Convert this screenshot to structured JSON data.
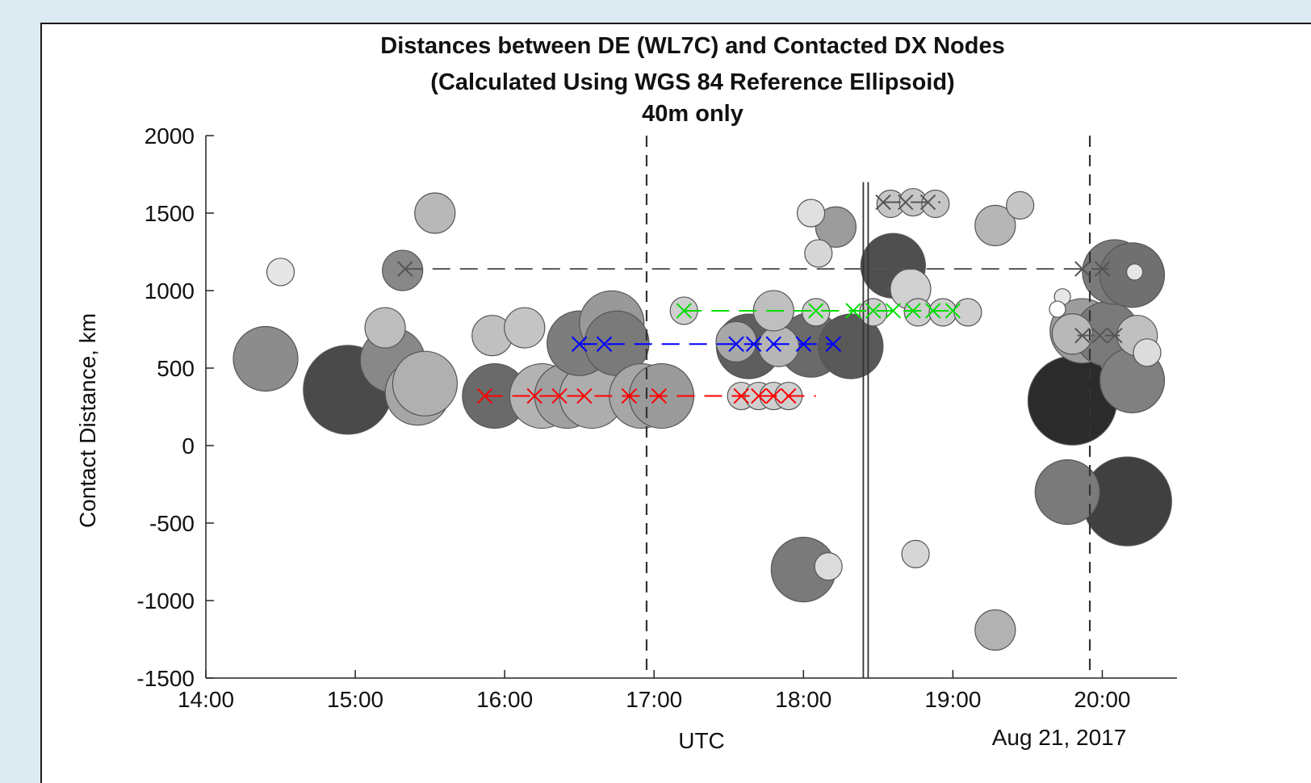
{
  "chart_data": {
    "type": "scatter",
    "title": [
      "Distances between DE (WL7C) and Contacted DX Nodes",
      "(Calculated Using WGS 84 Reference Ellipsoid)",
      "40m only"
    ],
    "xlabel": "UTC",
    "ylabel": "Contact Distance, km",
    "date_label": "Aug 21, 2017",
    "x_ticks": [
      "14:00",
      "15:00",
      "16:00",
      "17:00",
      "18:00",
      "19:00",
      "20:00"
    ],
    "y_ticks": [
      2000,
      1500,
      1000,
      500,
      0,
      -500,
      -1000,
      -1500
    ],
    "xlim": [
      "14:00",
      "20:30"
    ],
    "ylim": [
      -1500,
      2000
    ],
    "vertical_markers": {
      "dashed": [
        "16:57",
        "19:55"
      ],
      "solid_double": "18:25"
    },
    "bubbles": [
      {
        "x": "14:30",
        "y": 1120,
        "r": "small",
        "shade": "#e6e6e6"
      },
      {
        "x": "14:24",
        "y": 560,
        "r": "large",
        "shade": "#8c8c8c"
      },
      {
        "x": "14:57",
        "y": 360,
        "r": "xlarge",
        "shade": "#4a4a4a"
      },
      {
        "x": "15:12",
        "y": 760,
        "r": "medium",
        "shade": "#bdbdbd"
      },
      {
        "x": "15:15",
        "y": 550,
        "r": "large",
        "shade": "#888888"
      },
      {
        "x": "15:25",
        "y": 340,
        "r": "large",
        "shade": "#a6a6a6"
      },
      {
        "x": "15:28",
        "y": 400,
        "r": "large",
        "shade": "#b0b0b0"
      },
      {
        "x": "15:32",
        "y": 1500,
        "r": "medium",
        "shade": "#b8b8b8"
      },
      {
        "x": "15:19",
        "y": 1130,
        "r": "medium",
        "shade": "#888888"
      },
      {
        "x": "15:56",
        "y": 320,
        "r": "large",
        "shade": "#6a6a6a"
      },
      {
        "x": "15:55",
        "y": 710,
        "r": "medium",
        "shade": "#c0c0c0"
      },
      {
        "x": "16:08",
        "y": 760,
        "r": "medium",
        "shade": "#c4c4c4"
      },
      {
        "x": "16:15",
        "y": 320,
        "r": "large",
        "shade": "#b3b3b3"
      },
      {
        "x": "16:25",
        "y": 320,
        "r": "large",
        "shade": "#a0a0a0"
      },
      {
        "x": "16:35",
        "y": 320,
        "r": "large",
        "shade": "#adadad"
      },
      {
        "x": "16:30",
        "y": 660,
        "r": "large",
        "shade": "#7d7d7d"
      },
      {
        "x": "16:43",
        "y": 790,
        "r": "large",
        "shade": "#999999"
      },
      {
        "x": "16:45",
        "y": 660,
        "r": "large",
        "shade": "#7a7a7a"
      },
      {
        "x": "16:55",
        "y": 320,
        "r": "large",
        "shade": "#a6a6a6"
      },
      {
        "x": "17:03",
        "y": 320,
        "r": "large",
        "shade": "#9a9a9a"
      },
      {
        "x": "17:12",
        "y": 870,
        "r": "small",
        "shade": "#cfcfcf"
      },
      {
        "x": "17:33",
        "y": 670,
        "r": "medium",
        "shade": "#a8a8a8"
      },
      {
        "x": "17:35",
        "y": 320,
        "r": "small",
        "shade": "#cfcfcf"
      },
      {
        "x": "17:42",
        "y": 320,
        "r": "small",
        "shade": "#cfcfcf"
      },
      {
        "x": "17:48",
        "y": 320,
        "r": "small",
        "shade": "#cfcfcf"
      },
      {
        "x": "17:54",
        "y": 320,
        "r": "small",
        "shade": "#cfcfcf"
      },
      {
        "x": "17:38",
        "y": 640,
        "r": "large",
        "shade": "#5e5e5e"
      },
      {
        "x": "17:50",
        "y": 640,
        "r": "medium",
        "shade": "#b6b6b6"
      },
      {
        "x": "17:48",
        "y": 870,
        "r": "medium",
        "shade": "#bfbfbf"
      },
      {
        "x": "18:00",
        "y": -800,
        "r": "large",
        "shade": "#7a7a7a"
      },
      {
        "x": "18:10",
        "y": -780,
        "r": "small",
        "shade": "#dcdcdc"
      },
      {
        "x": "18:03",
        "y": 650,
        "r": "large",
        "shade": "#6a6a6a"
      },
      {
        "x": "18:05",
        "y": 860,
        "r": "small",
        "shade": "#cfcfcf"
      },
      {
        "x": "18:03",
        "y": 1500,
        "r": "small",
        "shade": "#e0e0e0"
      },
      {
        "x": "18:06",
        "y": 1240,
        "r": "small",
        "shade": "#d6d6d6"
      },
      {
        "x": "18:13",
        "y": 1410,
        "r": "medium",
        "shade": "#9c9c9c"
      },
      {
        "x": "18:19",
        "y": 640,
        "r": "large",
        "shade": "#595959"
      },
      {
        "x": "18:28",
        "y": 860,
        "r": "small",
        "shade": "#cfcfcf"
      },
      {
        "x": "18:36",
        "y": 1160,
        "r": "large",
        "shade": "#4f4f4f"
      },
      {
        "x": "18:43",
        "y": 1010,
        "r": "medium",
        "shade": "#d0d0d0"
      },
      {
        "x": "18:46",
        "y": 860,
        "r": "small",
        "shade": "#cfcfcf"
      },
      {
        "x": "18:56",
        "y": 860,
        "r": "small",
        "shade": "#cfcfcf"
      },
      {
        "x": "19:06",
        "y": 860,
        "r": "small",
        "shade": "#cfcfcf"
      },
      {
        "x": "18:35",
        "y": 1560,
        "r": "small",
        "shade": "#c6c6c6"
      },
      {
        "x": "18:44",
        "y": 1570,
        "r": "small",
        "shade": "#c6c6c6"
      },
      {
        "x": "18:53",
        "y": 1560,
        "r": "small",
        "shade": "#c6c6c6"
      },
      {
        "x": "18:45",
        "y": -700,
        "r": "small",
        "shade": "#d6d6d6"
      },
      {
        "x": "19:17",
        "y": 1420,
        "r": "medium",
        "shade": "#b6b6b6"
      },
      {
        "x": "19:27",
        "y": 1550,
        "r": "small",
        "shade": "#c6c6c6"
      },
      {
        "x": "19:17",
        "y": -1190,
        "r": "medium",
        "shade": "#b2b2b2"
      },
      {
        "x": "19:46",
        "y": -300,
        "r": "large",
        "shade": "#7a7a7a"
      },
      {
        "x": "19:48",
        "y": 290,
        "r": "xlarge",
        "shade": "#2b2b2b"
      },
      {
        "x": "19:48",
        "y": 720,
        "r": "medium",
        "shade": "#b8b8b8"
      },
      {
        "x": "19:52",
        "y": 740,
        "r": "large",
        "shade": "#9c9c9c"
      },
      {
        "x": "20:02",
        "y": 720,
        "r": "large",
        "shade": "#7a7a7a"
      },
      {
        "x": "20:05",
        "y": 1120,
        "r": "large",
        "shade": "#7a7a7a"
      },
      {
        "x": "20:12",
        "y": 1100,
        "r": "large",
        "shade": "#707070"
      },
      {
        "x": "20:12",
        "y": 420,
        "r": "large",
        "shade": "#808080"
      },
      {
        "x": "20:10",
        "y": -360,
        "r": "xlarge",
        "shade": "#404040"
      },
      {
        "x": "20:14",
        "y": 710,
        "r": "medium",
        "shade": "#c0c0c0"
      },
      {
        "x": "20:18",
        "y": 600,
        "r": "small",
        "shade": "#dcdcdc"
      },
      {
        "x": "20:13",
        "y": 1120,
        "r": "tiny",
        "shade": "#e6e6e6"
      },
      {
        "x": "19:44",
        "y": 960,
        "r": "tiny",
        "shade": "#e6e6e6"
      },
      {
        "x": "19:42",
        "y": 880,
        "r": "tiny",
        "shade": "#ffffff"
      }
    ],
    "series": [
      {
        "color": "#ff0000",
        "y": 320,
        "x_markers": [
          "15:52",
          "16:12",
          "16:22",
          "16:32",
          "16:50",
          "17:02",
          "17:35",
          "17:42",
          "17:48",
          "17:54"
        ],
        "x_range": [
          "15:52",
          "18:05"
        ]
      },
      {
        "color": "#0000ff",
        "y": 655,
        "x_markers": [
          "16:30",
          "16:40",
          "17:33",
          "17:40",
          "17:48",
          "18:00",
          "18:12"
        ],
        "x_range": [
          "16:30",
          "18:12"
        ]
      },
      {
        "color": "#00dd00",
        "y": 870,
        "x_markers": [
          "17:12",
          "18:05",
          "18:20",
          "18:28",
          "18:36",
          "18:44",
          "18:52",
          "19:00"
        ],
        "x_range": [
          "17:12",
          "19:00"
        ]
      },
      {
        "color": "#555555",
        "y": 1140,
        "x_markers": [
          "15:20",
          "19:52",
          "20:00"
        ],
        "x_range": [
          "15:20",
          "20:05"
        ]
      },
      {
        "color": "#555555",
        "y": 1570,
        "x_markers": [
          "18:32",
          "18:41",
          "18:50"
        ],
        "x_range": [
          "18:32",
          "18:55"
        ]
      },
      {
        "color": "#555555",
        "y": 710,
        "x_markers": [
          "19:52",
          "19:59",
          "20:05"
        ],
        "x_range": [
          "19:50",
          "20:07"
        ]
      }
    ]
  }
}
